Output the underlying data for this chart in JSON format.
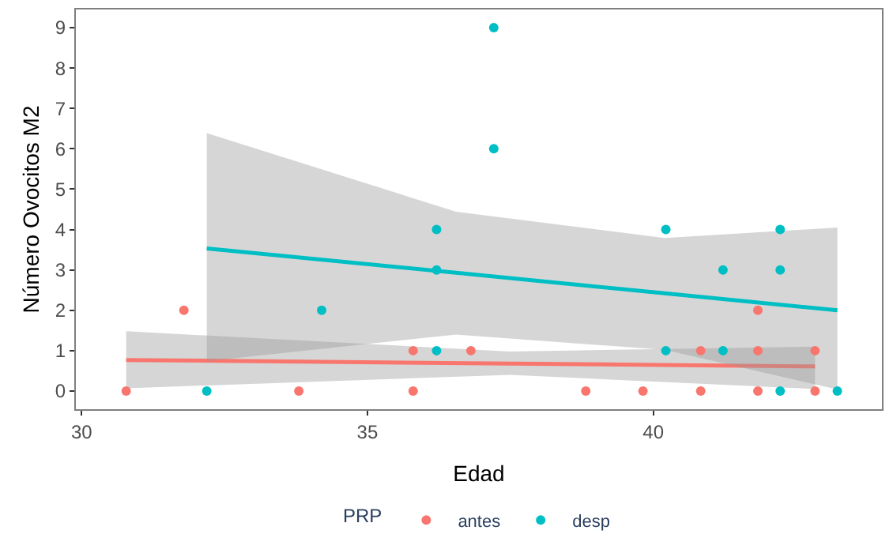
{
  "chart_data": {
    "type": "scatter",
    "xlabel": "Edad",
    "ylabel": "Número Ovocitos M2",
    "legend_title": "PRP",
    "legend": "bottom",
    "grid": false,
    "xlim": [
      29.9,
      44.0
    ],
    "xticks": [
      30,
      35,
      40
    ],
    "ylim": [
      -0.45,
      9.45
    ],
    "yticks": [
      0,
      1,
      2,
      3,
      4,
      5,
      6,
      7,
      8,
      9
    ],
    "series": [
      {
        "name": "antes",
        "color": "#f8766d",
        "marker": "circle",
        "x": [
          30.78,
          31.79,
          33.8,
          35.8,
          35.8,
          36.81,
          38.82,
          39.82,
          40.83,
          40.83,
          41.83,
          41.83,
          41.83,
          42.83,
          42.83
        ],
        "values": [
          0,
          2,
          0,
          0,
          1,
          1,
          0,
          0,
          0,
          1,
          0,
          1,
          2,
          0,
          1
        ]
      },
      {
        "name": "desp",
        "color": "#00bfc4",
        "marker": "circle",
        "x": [
          32.19,
          34.2,
          36.21,
          36.21,
          36.21,
          37.21,
          37.21,
          40.22,
          40.22,
          41.22,
          41.22,
          42.22,
          42.22,
          42.22,
          43.22
        ],
        "values": [
          0,
          2,
          4,
          3,
          1,
          9,
          6,
          4,
          1,
          3,
          1,
          4,
          3,
          0,
          0
        ]
      },
      {
        "color": "#f8766d",
        "type": "line",
        "marker": "none",
        "x": [
          30.78,
          37.5,
          42.83
        ],
        "values": [
          0.77,
          0.68,
          0.61
        ],
        "lower": [
          0.07,
          0.4,
          0.05
        ],
        "upper": [
          1.48,
          0.98,
          1.1
        ]
      },
      {
        "color": "#00bfc4",
        "type": "line",
        "marker": "none",
        "x": [
          32.19,
          36.55,
          40.2,
          43.22
        ],
        "values": [
          3.53,
          2.93,
          2.42,
          2.0
        ],
        "lower": [
          0.74,
          1.4,
          1.02,
          0.04
        ],
        "upper": [
          6.39,
          4.44,
          3.79,
          4.05
        ]
      }
    ]
  }
}
